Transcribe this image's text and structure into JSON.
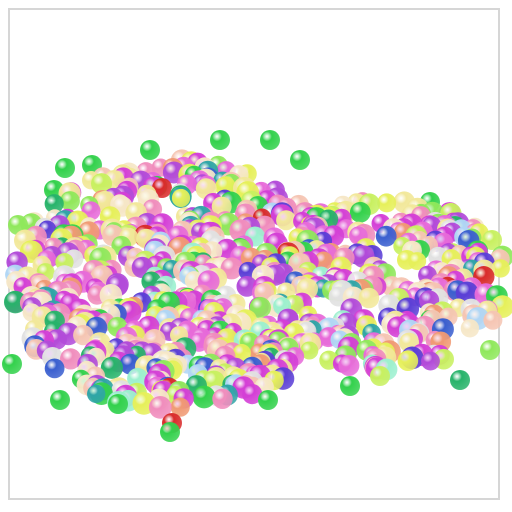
{
  "scene": {
    "subject": "molecular-atom-cluster",
    "background_color": "#ffffff",
    "frame_color": "#d6d6d6",
    "palette": [
      "#d43fd6",
      "#b24bd9",
      "#e76bd9",
      "#f08dbd",
      "#f5c5b3",
      "#f2e89a",
      "#e6f05a",
      "#c8f060",
      "#8fe85b",
      "#33d14c",
      "#27b36a",
      "#2fa5a7",
      "#3a5fcf",
      "#5b3fd6",
      "#e1e1e1",
      "#f6e7c7",
      "#d92b2b",
      "#f09a74",
      "#b0d6f5",
      "#9cf0cf"
    ]
  }
}
